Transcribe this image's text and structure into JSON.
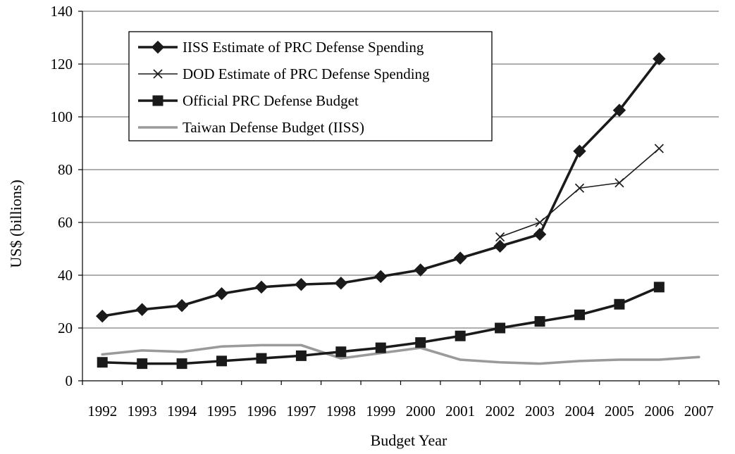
{
  "chart_data": {
    "type": "line",
    "xlabel": "Budget Year",
    "ylabel": "US$ (billions)",
    "ylim": [
      0,
      140
    ],
    "yticks": [
      0,
      20,
      40,
      60,
      80,
      100,
      120,
      140
    ],
    "categories": [
      "1992",
      "1993",
      "1994",
      "1995",
      "1996",
      "1997",
      "1998",
      "1999",
      "2000",
      "2001",
      "2002",
      "2003",
      "2004",
      "2005",
      "2006",
      "2007"
    ],
    "grid": "horizontal",
    "legend_position": "top-left",
    "series": [
      {
        "name": "IISS Estimate of PRC Defense Spending",
        "color": "#1a1a1a",
        "marker": "diamond",
        "line_style": "thick",
        "values": [
          24.5,
          27,
          28.5,
          33,
          35.5,
          36.5,
          37,
          39.5,
          42,
          46.5,
          51,
          55.5,
          87,
          102.5,
          122,
          null
        ]
      },
      {
        "name": "DOD Estimate of PRC Defense Spending",
        "color": "#1a1a1a",
        "marker": "x",
        "line_style": "thin",
        "values": [
          null,
          null,
          null,
          null,
          null,
          null,
          null,
          null,
          null,
          null,
          54.5,
          60,
          73,
          75,
          88,
          null
        ]
      },
      {
        "name": "Official PRC Defense Budget",
        "color": "#1a1a1a",
        "marker": "square",
        "line_style": "thick",
        "values": [
          7,
          6.5,
          6.5,
          7.5,
          8.5,
          9.5,
          11,
          12.5,
          14.5,
          17,
          20,
          22.5,
          25,
          29,
          35.5,
          null
        ]
      },
      {
        "name": "Taiwan Defense Budget (IISS)",
        "color": "#9a9a9a",
        "marker": "none",
        "line_style": "thick",
        "values": [
          10,
          11.5,
          11,
          13,
          13.5,
          13.5,
          8.5,
          10.5,
          12.5,
          8,
          7,
          6.5,
          7.5,
          8,
          8,
          9
        ]
      }
    ]
  }
}
